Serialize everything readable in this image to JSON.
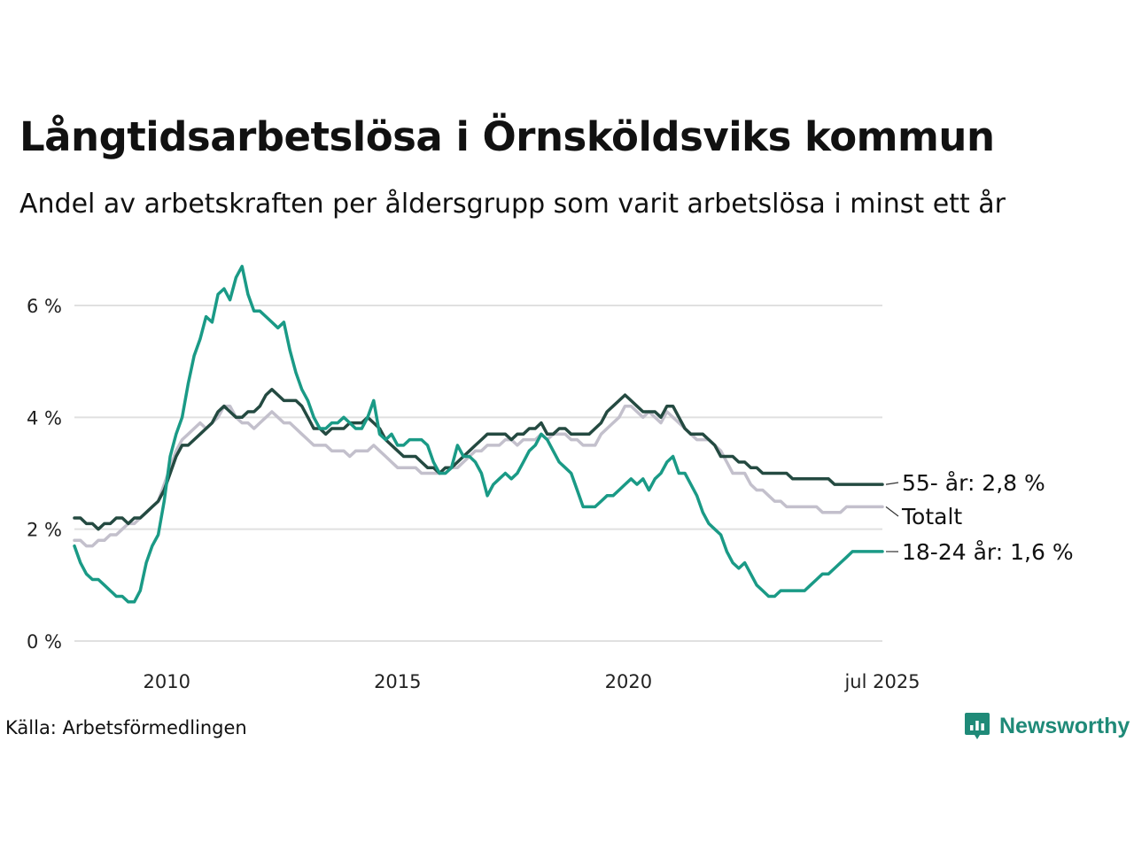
{
  "title": "Långtidsarbetslösa i Örnsköldsviks kommun",
  "subtitle": "Andel av arbetskraften per åldersgrupp som varit arbetslösa i minst ett år",
  "source": "Källa: Arbetsförmedlingen",
  "brand": {
    "name": "Newsworthy",
    "icon": "newsworthy-logo-icon",
    "color": "#1f8a78"
  },
  "chart_data": {
    "type": "line",
    "x_start": 2008.0,
    "x_end": 2025.5,
    "xlim": [
      2008.0,
      2025.5
    ],
    "ylim": [
      0,
      7
    ],
    "y_ticks": [
      0,
      2,
      4,
      6
    ],
    "y_tick_labels": [
      "0 %",
      "2 %",
      "4 %",
      "6 %"
    ],
    "x_ticks": [
      2010,
      2015,
      2020,
      2025.5
    ],
    "x_tick_labels": [
      "2010",
      "2015",
      "2020",
      "jul 2025"
    ],
    "grid": "horizontal",
    "legend": "direct labels at line ends",
    "series": [
      {
        "name": "Totalt",
        "end_label": "Totalt",
        "color": "#c3c0cc",
        "values": [
          1.8,
          1.8,
          1.7,
          1.7,
          1.8,
          1.8,
          1.9,
          1.9,
          2.0,
          2.1,
          2.1,
          2.2,
          2.3,
          2.4,
          2.5,
          2.8,
          3.1,
          3.4,
          3.6,
          3.7,
          3.8,
          3.9,
          3.8,
          3.9,
          4.0,
          4.2,
          4.2,
          4.0,
          3.9,
          3.9,
          3.8,
          3.9,
          4.0,
          4.1,
          4.0,
          3.9,
          3.9,
          3.8,
          3.7,
          3.6,
          3.5,
          3.5,
          3.5,
          3.4,
          3.4,
          3.4,
          3.3,
          3.4,
          3.4,
          3.4,
          3.5,
          3.4,
          3.3,
          3.2,
          3.1,
          3.1,
          3.1,
          3.1,
          3.0,
          3.0,
          3.0,
          3.0,
          3.0,
          3.1,
          3.1,
          3.2,
          3.3,
          3.4,
          3.4,
          3.5,
          3.5,
          3.5,
          3.6,
          3.6,
          3.5,
          3.6,
          3.6,
          3.6,
          3.7,
          3.6,
          3.7,
          3.7,
          3.7,
          3.6,
          3.6,
          3.5,
          3.5,
          3.5,
          3.7,
          3.8,
          3.9,
          4.0,
          4.2,
          4.2,
          4.1,
          4.0,
          4.1,
          4.0,
          3.9,
          4.1,
          4.0,
          3.9,
          3.8,
          3.7,
          3.6,
          3.6,
          3.6,
          3.5,
          3.4,
          3.2,
          3.0,
          3.0,
          3.0,
          2.8,
          2.7,
          2.7,
          2.6,
          2.5,
          2.5,
          2.4,
          2.4,
          2.4,
          2.4,
          2.4,
          2.4,
          2.3,
          2.3,
          2.3,
          2.3,
          2.4,
          2.4,
          2.4,
          2.4,
          2.4,
          2.4,
          2.4
        ]
      },
      {
        "name": "55- år",
        "end_label": "55- år: 2,8 %",
        "color": "#244a41",
        "values": [
          2.2,
          2.2,
          2.1,
          2.1,
          2.0,
          2.1,
          2.1,
          2.2,
          2.2,
          2.1,
          2.2,
          2.2,
          2.3,
          2.4,
          2.5,
          2.7,
          3.0,
          3.3,
          3.5,
          3.5,
          3.6,
          3.7,
          3.8,
          3.9,
          4.1,
          4.2,
          4.1,
          4.0,
          4.0,
          4.1,
          4.1,
          4.2,
          4.4,
          4.5,
          4.4,
          4.3,
          4.3,
          4.3,
          4.2,
          4.0,
          3.8,
          3.8,
          3.7,
          3.8,
          3.8,
          3.8,
          3.9,
          3.9,
          3.9,
          4.0,
          3.9,
          3.8,
          3.6,
          3.5,
          3.4,
          3.3,
          3.3,
          3.3,
          3.2,
          3.1,
          3.1,
          3.0,
          3.1,
          3.1,
          3.2,
          3.3,
          3.4,
          3.5,
          3.6,
          3.7,
          3.7,
          3.7,
          3.7,
          3.6,
          3.7,
          3.7,
          3.8,
          3.8,
          3.9,
          3.7,
          3.7,
          3.8,
          3.8,
          3.7,
          3.7,
          3.7,
          3.7,
          3.8,
          3.9,
          4.1,
          4.2,
          4.3,
          4.4,
          4.3,
          4.2,
          4.1,
          4.1,
          4.1,
          4.0,
          4.2,
          4.2,
          4.0,
          3.8,
          3.7,
          3.7,
          3.7,
          3.6,
          3.5,
          3.3,
          3.3,
          3.3,
          3.2,
          3.2,
          3.1,
          3.1,
          3.0,
          3.0,
          3.0,
          3.0,
          3.0,
          2.9,
          2.9,
          2.9,
          2.9,
          2.9,
          2.9,
          2.9,
          2.8,
          2.8,
          2.8,
          2.8,
          2.8,
          2.8,
          2.8,
          2.8,
          2.8
        ]
      },
      {
        "name": "18-24 år",
        "end_label": "18-24 år: 1,6 %",
        "color": "#1a9a86",
        "values": [
          1.7,
          1.4,
          1.2,
          1.1,
          1.1,
          1.0,
          0.9,
          0.8,
          0.8,
          0.7,
          0.7,
          0.9,
          1.4,
          1.7,
          1.9,
          2.5,
          3.3,
          3.7,
          4.0,
          4.6,
          5.1,
          5.4,
          5.8,
          5.7,
          6.2,
          6.3,
          6.1,
          6.5,
          6.7,
          6.2,
          5.9,
          5.9,
          5.8,
          5.7,
          5.6,
          5.7,
          5.2,
          4.8,
          4.5,
          4.3,
          4.0,
          3.8,
          3.8,
          3.9,
          3.9,
          4.0,
          3.9,
          3.8,
          3.8,
          4.0,
          4.3,
          3.7,
          3.6,
          3.7,
          3.5,
          3.5,
          3.6,
          3.6,
          3.6,
          3.5,
          3.2,
          3.0,
          3.0,
          3.1,
          3.5,
          3.3,
          3.3,
          3.2,
          3.0,
          2.6,
          2.8,
          2.9,
          3.0,
          2.9,
          3.0,
          3.2,
          3.4,
          3.5,
          3.7,
          3.6,
          3.4,
          3.2,
          3.1,
          3.0,
          2.7,
          2.4,
          2.4,
          2.4,
          2.5,
          2.6,
          2.6,
          2.7,
          2.8,
          2.9,
          2.8,
          2.9,
          2.7,
          2.9,
          3.0,
          3.2,
          3.3,
          3.0,
          3.0,
          2.8,
          2.6,
          2.3,
          2.1,
          2.0,
          1.9,
          1.6,
          1.4,
          1.3,
          1.4,
          1.2,
          1.0,
          0.9,
          0.8,
          0.8,
          0.9,
          0.9,
          0.9,
          0.9,
          0.9,
          1.0,
          1.1,
          1.2,
          1.2,
          1.3,
          1.4,
          1.5,
          1.6,
          1.6,
          1.6,
          1.6,
          1.6,
          1.6
        ]
      }
    ],
    "colors": {
      "grid": "#e0e0e0",
      "axis_text": "#222222"
    }
  }
}
